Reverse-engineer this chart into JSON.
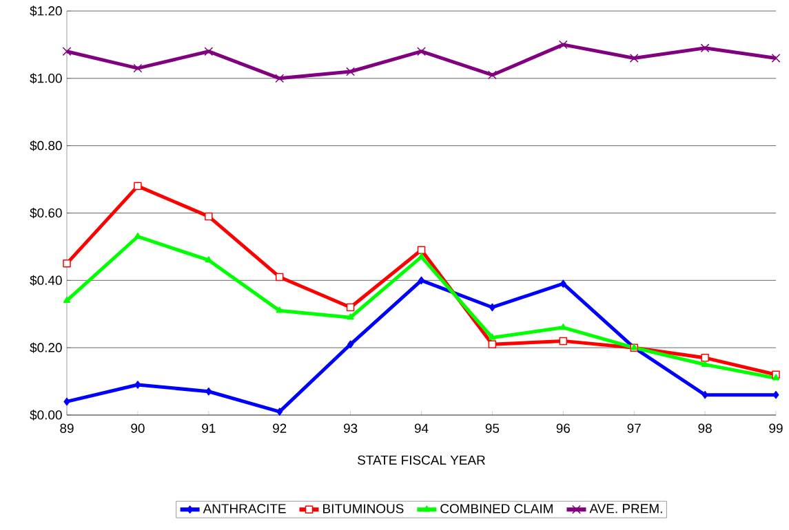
{
  "chart_data": {
    "type": "line",
    "xlabel": "STATE FISCAL YEAR",
    "x": [
      89,
      90,
      91,
      92,
      93,
      94,
      95,
      96,
      97,
      98,
      99
    ],
    "xlim": [
      89,
      99
    ],
    "xticks": [
      89,
      90,
      91,
      92,
      93,
      94,
      95,
      96,
      97,
      98,
      99
    ],
    "ylim": [
      0,
      1.2
    ],
    "yticks": [
      {
        "value": 0,
        "label": "$0.00"
      },
      {
        "value": 0.2,
        "label": "$0.20"
      },
      {
        "value": 0.4,
        "label": "$0.40"
      },
      {
        "value": 0.6,
        "label": "$0.60"
      },
      {
        "value": 0.8,
        "label": "$0.80"
      },
      {
        "value": 1.0,
        "label": "$1.00"
      },
      {
        "value": 1.2,
        "label": "$1.20"
      }
    ],
    "grid": "y",
    "legend": "bottom",
    "line_style": "solid",
    "series": [
      {
        "name": "ANTHRACITE",
        "color": "#0000ff",
        "marker": "diamond",
        "values": [
          0.04,
          0.09,
          0.07,
          0.01,
          0.21,
          0.4,
          0.32,
          0.39,
          0.2,
          0.06,
          0.06
        ]
      },
      {
        "name": "BITUMINOUS",
        "color": "#ff0000",
        "marker": "square",
        "values": [
          0.45,
          0.68,
          0.59,
          0.41,
          0.32,
          0.49,
          0.21,
          0.22,
          0.2,
          0.17,
          0.12
        ]
      },
      {
        "name": "COMBINED CLAIM",
        "color": "#00ff00",
        "marker": "triangle",
        "values": [
          0.34,
          0.53,
          0.46,
          0.31,
          0.29,
          0.47,
          0.23,
          0.26,
          0.2,
          0.15,
          0.11
        ]
      },
      {
        "name": "AVE. PREM.",
        "color": "#800080",
        "marker": "cross",
        "values": [
          1.08,
          1.03,
          1.08,
          1.0,
          1.02,
          1.08,
          1.01,
          1.1,
          1.06,
          1.09,
          1.06
        ]
      }
    ]
  }
}
